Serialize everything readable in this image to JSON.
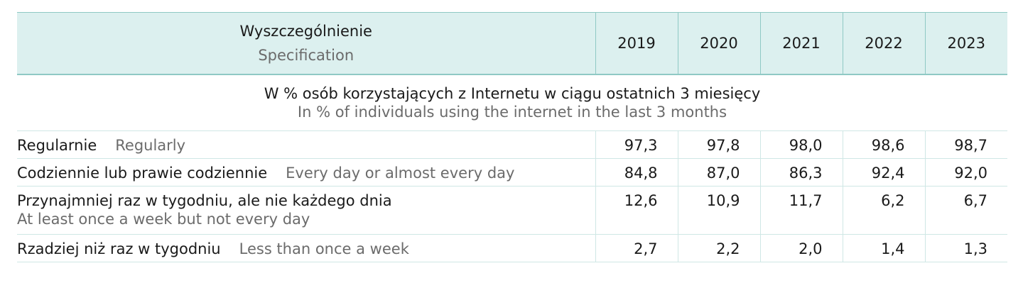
{
  "table": {
    "header": {
      "spec_pl": "Wyszczególnienie",
      "spec_en": "Specification",
      "years": [
        "2019",
        "2020",
        "2021",
        "2022",
        "2023"
      ]
    },
    "note": {
      "pl": "W % osób korzystających z Internetu w ciągu ostatnich 3 miesięcy",
      "en": "In % of individuals using the internet in the last 3 months"
    },
    "rows": [
      {
        "label_pl": "Regularnie",
        "label_en": "Regularly",
        "values": [
          "97,3",
          "97,8",
          "98,0",
          "98,6",
          "98,7"
        ]
      },
      {
        "label_pl": "Codziennie lub prawie codziennie",
        "label_en": "Every day or almost every day",
        "values": [
          "84,8",
          "87,0",
          "86,3",
          "92,4",
          "92,0"
        ]
      },
      {
        "label_pl": "Przynajmniej raz w tygodniu, ale nie każdego dnia",
        "label_en": "At least once a week but not every day",
        "values": [
          "12,6",
          "10,9",
          "11,7",
          "6,2",
          "6,7"
        ]
      },
      {
        "label_pl": "Rzadziej niż raz w tygodniu",
        "label_en": "Less than once a week",
        "values": [
          "2,7",
          "2,2",
          "2,0",
          "1,4",
          "1,3"
        ]
      }
    ]
  },
  "colors": {
    "header_bg": "#dcf0ef",
    "border": "#8fc9c4",
    "secondary_text": "#6b6b6b"
  }
}
